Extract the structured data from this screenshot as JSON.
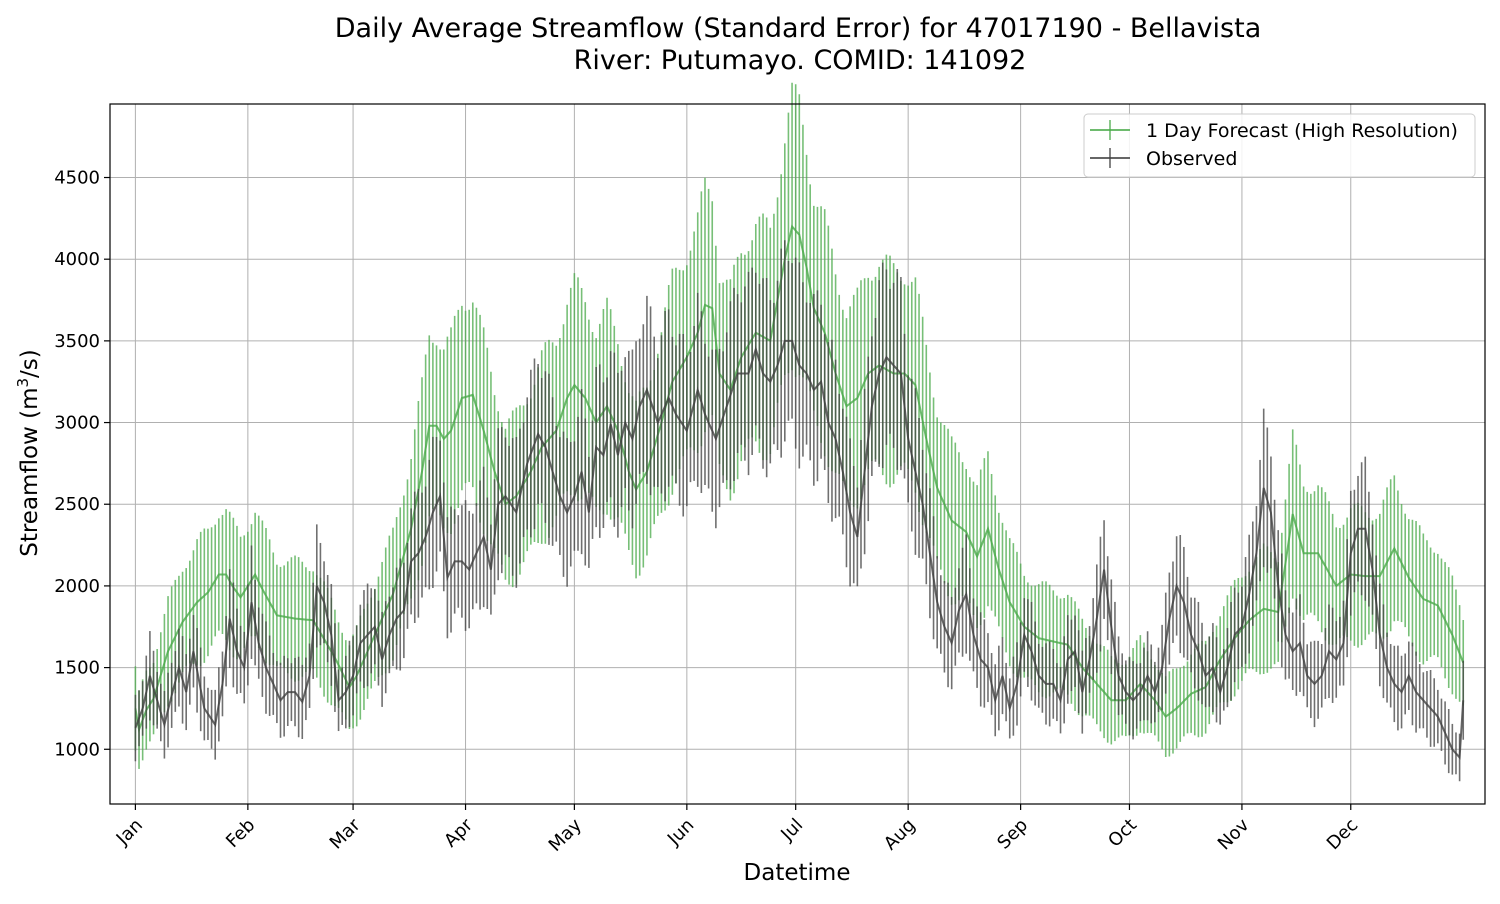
{
  "chart_data": {
    "type": "line",
    "title_line1": "Daily Average Streamflow (Standard Error) for 47017190 - Bellavista",
    "title_line2": "River: Putumayo. COMID: 141092",
    "xlabel": "Datetime",
    "ylabel_prefix": "Streamflow (m",
    "ylabel_sup": "3",
    "ylabel_suffix": "/s)",
    "x_unit": "day of year",
    "xlim": [
      -6,
      373
    ],
    "ylim": [
      665,
      4950
    ],
    "grid": true,
    "legend_position": "top-right",
    "x_ticks": [
      {
        "label": "Jan",
        "day": 1
      },
      {
        "label": "Feb",
        "day": 32
      },
      {
        "label": "Mar",
        "day": 61
      },
      {
        "label": "Apr",
        "day": 92
      },
      {
        "label": "May",
        "day": 122
      },
      {
        "label": "Jun",
        "day": 153
      },
      {
        "label": "Jul",
        "day": 183
      },
      {
        "label": "Aug",
        "day": 214
      },
      {
        "label": "Sep",
        "day": 245
      },
      {
        "label": "Oct",
        "day": 275
      },
      {
        "label": "Nov",
        "day": 306
      },
      {
        "label": "Dec",
        "day": 336
      }
    ],
    "y_ticks": [
      1000,
      1500,
      2000,
      2500,
      3000,
      3500,
      4000,
      4500
    ],
    "series": [
      {
        "name": "1 Day Forecast (High Resolution)",
        "color": "#4aaa4a",
        "anchors": [
          [
            1,
            1250
          ],
          [
            2,
            1120
          ],
          [
            4,
            1240
          ],
          [
            6,
            1310
          ],
          [
            10,
            1600
          ],
          [
            14,
            1780
          ],
          [
            18,
            1900
          ],
          [
            21,
            1960
          ],
          [
            24,
            2070
          ],
          [
            26,
            2070
          ],
          [
            28,
            1990
          ],
          [
            30,
            1930
          ],
          [
            32,
            2000
          ],
          [
            34,
            2070
          ],
          [
            36,
            1980
          ],
          [
            40,
            1820
          ],
          [
            45,
            1800
          ],
          [
            50,
            1790
          ],
          [
            56,
            1560
          ],
          [
            60,
            1380
          ],
          [
            62,
            1450
          ],
          [
            66,
            1650
          ],
          [
            72,
            1950
          ],
          [
            77,
            2350
          ],
          [
            80,
            2700
          ],
          [
            82,
            2980
          ],
          [
            84,
            2980
          ],
          [
            86,
            2900
          ],
          [
            88,
            2950
          ],
          [
            91,
            3150
          ],
          [
            94,
            3170
          ],
          [
            97,
            2950
          ],
          [
            100,
            2700
          ],
          [
            103,
            2500
          ],
          [
            106,
            2550
          ],
          [
            110,
            2700
          ],
          [
            113,
            2850
          ],
          [
            117,
            2950
          ],
          [
            120,
            3150
          ],
          [
            122,
            3230
          ],
          [
            125,
            3150
          ],
          [
            128,
            3000
          ],
          [
            131,
            3100
          ],
          [
            134,
            2950
          ],
          [
            137,
            2700
          ],
          [
            139,
            2590
          ],
          [
            142,
            2700
          ],
          [
            146,
            3000
          ],
          [
            149,
            3250
          ],
          [
            153,
            3400
          ],
          [
            156,
            3550
          ],
          [
            158,
            3720
          ],
          [
            160,
            3700
          ],
          [
            162,
            3300
          ],
          [
            165,
            3200
          ],
          [
            168,
            3400
          ],
          [
            172,
            3550
          ],
          [
            176,
            3500
          ],
          [
            180,
            4000
          ],
          [
            182,
            4200
          ],
          [
            184,
            4150
          ],
          [
            186,
            3950
          ],
          [
            188,
            3700
          ],
          [
            191,
            3550
          ],
          [
            194,
            3300
          ],
          [
            197,
            3100
          ],
          [
            200,
            3150
          ],
          [
            203,
            3300
          ],
          [
            206,
            3350
          ],
          [
            210,
            3300
          ],
          [
            213,
            3300
          ],
          [
            216,
            3230
          ],
          [
            219,
            2900
          ],
          [
            222,
            2600
          ],
          [
            226,
            2400
          ],
          [
            230,
            2330
          ],
          [
            233,
            2180
          ],
          [
            236,
            2350
          ],
          [
            239,
            2100
          ],
          [
            242,
            1900
          ],
          [
            246,
            1750
          ],
          [
            250,
            1680
          ],
          [
            254,
            1660
          ],
          [
            258,
            1640
          ],
          [
            262,
            1500
          ],
          [
            266,
            1400
          ],
          [
            270,
            1300
          ],
          [
            274,
            1300
          ],
          [
            278,
            1400
          ],
          [
            282,
            1300
          ],
          [
            285,
            1200
          ],
          [
            288,
            1250
          ],
          [
            292,
            1340
          ],
          [
            296,
            1380
          ],
          [
            300,
            1550
          ],
          [
            304,
            1680
          ],
          [
            308,
            1790
          ],
          [
            312,
            1860
          ],
          [
            316,
            1840
          ],
          [
            320,
            2440
          ],
          [
            323,
            2200
          ],
          [
            327,
            2200
          ],
          [
            332,
            2000
          ],
          [
            336,
            2070
          ],
          [
            340,
            2060
          ],
          [
            344,
            2060
          ],
          [
            348,
            2230
          ],
          [
            352,
            2050
          ],
          [
            356,
            1920
          ],
          [
            360,
            1880
          ],
          [
            364,
            1700
          ],
          [
            367,
            1530
          ]
        ],
        "error": {
          "scale": 0.19,
          "amp": 0.13,
          "freq": 0.73
        }
      },
      {
        "name": "Observed",
        "color": "#404040",
        "anchors": [
          [
            1,
            1130
          ],
          [
            3,
            1250
          ],
          [
            5,
            1450
          ],
          [
            7,
            1300
          ],
          [
            9,
            1150
          ],
          [
            11,
            1330
          ],
          [
            13,
            1500
          ],
          [
            15,
            1350
          ],
          [
            17,
            1600
          ],
          [
            20,
            1250
          ],
          [
            23,
            1150
          ],
          [
            25,
            1400
          ],
          [
            27,
            1800
          ],
          [
            29,
            1600
          ],
          [
            31,
            1500
          ],
          [
            33,
            1900
          ],
          [
            35,
            1650
          ],
          [
            37,
            1500
          ],
          [
            39,
            1400
          ],
          [
            41,
            1300
          ],
          [
            43,
            1350
          ],
          [
            45,
            1350
          ],
          [
            47,
            1290
          ],
          [
            49,
            1450
          ],
          [
            51,
            2000
          ],
          [
            53,
            1900
          ],
          [
            55,
            1700
          ],
          [
            57,
            1300
          ],
          [
            59,
            1350
          ],
          [
            61,
            1450
          ],
          [
            63,
            1650
          ],
          [
            65,
            1700
          ],
          [
            67,
            1750
          ],
          [
            69,
            1550
          ],
          [
            71,
            1700
          ],
          [
            73,
            1800
          ],
          [
            75,
            1850
          ],
          [
            77,
            2150
          ],
          [
            79,
            2200
          ],
          [
            81,
            2300
          ],
          [
            83,
            2450
          ],
          [
            85,
            2550
          ],
          [
            87,
            2050
          ],
          [
            89,
            2150
          ],
          [
            91,
            2150
          ],
          [
            93,
            2100
          ],
          [
            95,
            2200
          ],
          [
            97,
            2300
          ],
          [
            99,
            2100
          ],
          [
            101,
            2500
          ],
          [
            103,
            2550
          ],
          [
            106,
            2450
          ],
          [
            109,
            2750
          ],
          [
            112,
            2930
          ],
          [
            114,
            2850
          ],
          [
            116,
            2700
          ],
          [
            118,
            2550
          ],
          [
            120,
            2450
          ],
          [
            122,
            2550
          ],
          [
            124,
            2700
          ],
          [
            126,
            2450
          ],
          [
            128,
            2850
          ],
          [
            130,
            2800
          ],
          [
            132,
            2990
          ],
          [
            134,
            2800
          ],
          [
            136,
            3000
          ],
          [
            138,
            2900
          ],
          [
            140,
            3100
          ],
          [
            142,
            3200
          ],
          [
            145,
            3000
          ],
          [
            148,
            3150
          ],
          [
            150,
            3050
          ],
          [
            153,
            2950
          ],
          [
            156,
            3200
          ],
          [
            158,
            3050
          ],
          [
            161,
            2900
          ],
          [
            164,
            3100
          ],
          [
            167,
            3300
          ],
          [
            170,
            3300
          ],
          [
            172,
            3450
          ],
          [
            174,
            3300
          ],
          [
            176,
            3250
          ],
          [
            178,
            3350
          ],
          [
            180,
            3500
          ],
          [
            182,
            3500
          ],
          [
            184,
            3350
          ],
          [
            186,
            3300
          ],
          [
            188,
            3200
          ],
          [
            190,
            3250
          ],
          [
            192,
            3000
          ],
          [
            194,
            2900
          ],
          [
            196,
            2700
          ],
          [
            198,
            2450
          ],
          [
            200,
            2300
          ],
          [
            202,
            2700
          ],
          [
            204,
            3100
          ],
          [
            206,
            3300
          ],
          [
            208,
            3400
          ],
          [
            210,
            3350
          ],
          [
            212,
            3300
          ],
          [
            214,
            2900
          ],
          [
            216,
            2700
          ],
          [
            218,
            2500
          ],
          [
            220,
            2200
          ],
          [
            222,
            1900
          ],
          [
            224,
            1750
          ],
          [
            226,
            1650
          ],
          [
            228,
            1850
          ],
          [
            230,
            1950
          ],
          [
            232,
            1700
          ],
          [
            234,
            1550
          ],
          [
            236,
            1500
          ],
          [
            238,
            1300
          ],
          [
            240,
            1450
          ],
          [
            242,
            1250
          ],
          [
            244,
            1400
          ],
          [
            246,
            1700
          ],
          [
            248,
            1600
          ],
          [
            250,
            1450
          ],
          [
            252,
            1400
          ],
          [
            254,
            1400
          ],
          [
            256,
            1300
          ],
          [
            258,
            1550
          ],
          [
            260,
            1600
          ],
          [
            262,
            1350
          ],
          [
            264,
            1550
          ],
          [
            266,
            1800
          ],
          [
            268,
            2100
          ],
          [
            270,
            1750
          ],
          [
            272,
            1450
          ],
          [
            274,
            1350
          ],
          [
            276,
            1300
          ],
          [
            278,
            1350
          ],
          [
            280,
            1450
          ],
          [
            282,
            1350
          ],
          [
            284,
            1500
          ],
          [
            286,
            1800
          ],
          [
            288,
            2000
          ],
          [
            290,
            1900
          ],
          [
            292,
            1700
          ],
          [
            294,
            1600
          ],
          [
            296,
            1450
          ],
          [
            298,
            1500
          ],
          [
            300,
            1350
          ],
          [
            302,
            1500
          ],
          [
            304,
            1700
          ],
          [
            306,
            1750
          ],
          [
            308,
            1950
          ],
          [
            310,
            2200
          ],
          [
            312,
            2600
          ],
          [
            314,
            2450
          ],
          [
            316,
            2000
          ],
          [
            318,
            1700
          ],
          [
            320,
            1600
          ],
          [
            322,
            1650
          ],
          [
            324,
            1450
          ],
          [
            326,
            1400
          ],
          [
            328,
            1450
          ],
          [
            330,
            1600
          ],
          [
            332,
            1550
          ],
          [
            334,
            1650
          ],
          [
            336,
            2200
          ],
          [
            338,
            2350
          ],
          [
            340,
            2350
          ],
          [
            342,
            2100
          ],
          [
            344,
            1700
          ],
          [
            346,
            1500
          ],
          [
            348,
            1400
          ],
          [
            350,
            1350
          ],
          [
            352,
            1450
          ],
          [
            354,
            1350
          ],
          [
            356,
            1300
          ],
          [
            358,
            1250
          ],
          [
            360,
            1200
          ],
          [
            362,
            1100
          ],
          [
            364,
            1000
          ],
          [
            366,
            950
          ],
          [
            367,
            1300
          ]
        ],
        "error": {
          "scale": 0.16,
          "amp": 0.18,
          "freq": 1.37
        }
      }
    ]
  }
}
